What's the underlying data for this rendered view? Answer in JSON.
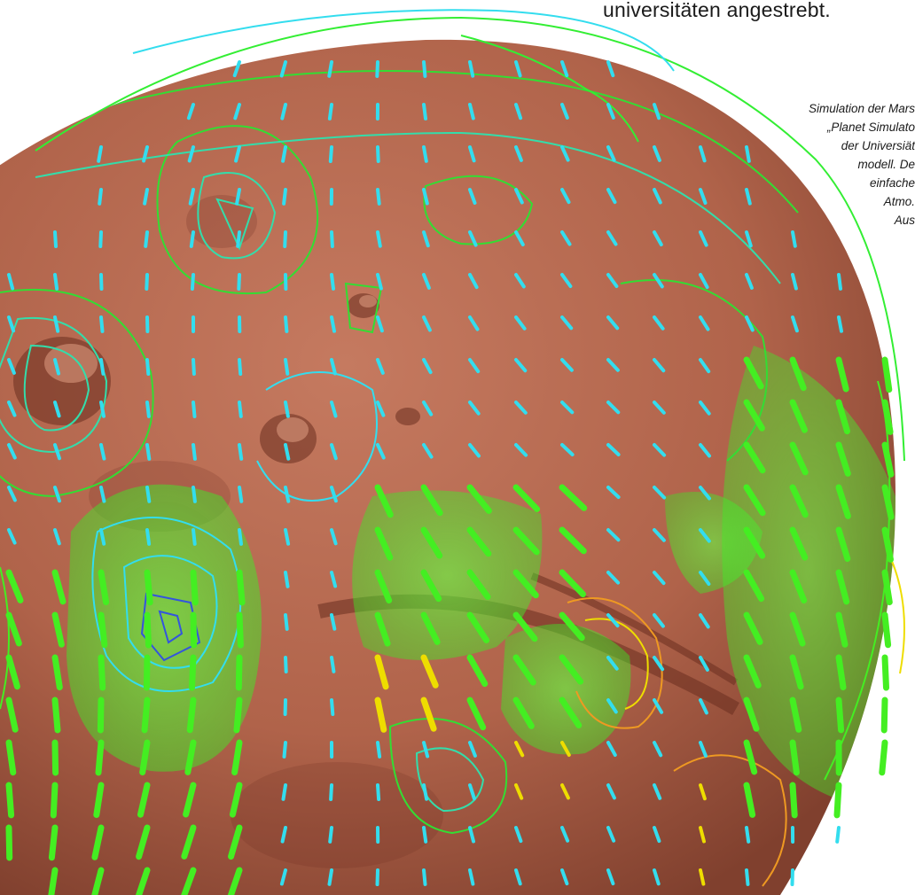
{
  "page": {
    "body_text": "universitäten angestrebt.",
    "caption_lines": [
      "Simulation der Mars",
      "„Planet Simulato",
      "der Universiät",
      "modell. De",
      "einfache",
      "Atmo.",
      "Aus"
    ]
  },
  "figure": {
    "subject": "mars-globe-with-wind-field",
    "colors": {
      "planet": "#b86a52",
      "planet_dark": "#7a3a28",
      "contour_green": "#33dd33",
      "contour_teal": "#33ddaa",
      "arrow_cyan": "#33ddee",
      "arrow_green": "#44ee22",
      "arrow_yellow": "#eedd00",
      "contour_orange": "#ee9922",
      "contour_blue": "#3355dd",
      "blob_green": "#44ff33"
    }
  }
}
